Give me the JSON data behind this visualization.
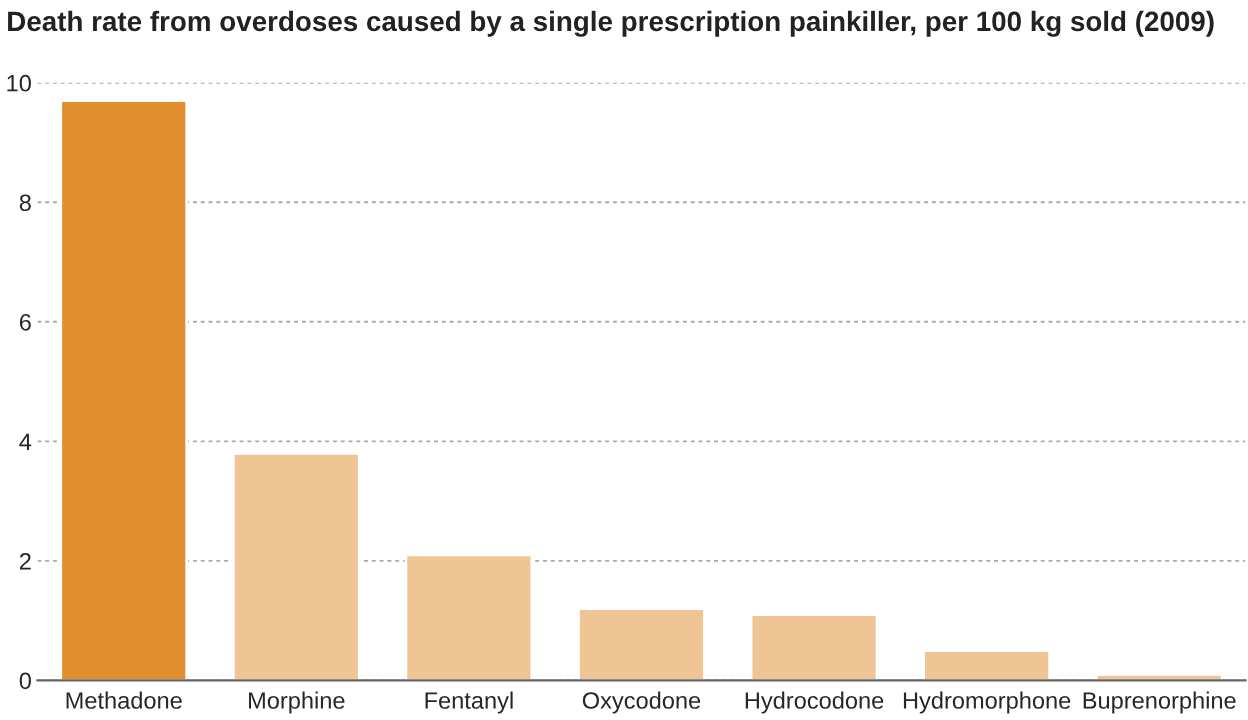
{
  "chart_data": {
    "type": "bar",
    "title": "Death rate from overdoses caused by a single prescription painkiller, per 100 kg sold (2009)",
    "categories": [
      "Methadone",
      "Morphine",
      "Fentanyl",
      "Oxycodone",
      "Hydrocodone",
      "Hydromorphone",
      "Buprenorphine"
    ],
    "values": [
      9.7,
      3.8,
      2.1,
      1.2,
      1.1,
      0.5,
      0.1
    ],
    "colors": [
      "#e08e2e",
      "#efc596",
      "#efc596",
      "#efc596",
      "#efc596",
      "#efc596",
      "#efc596"
    ],
    "ylim": [
      0,
      10
    ],
    "yticks": [
      0,
      2,
      4,
      6,
      8,
      10
    ],
    "grid": "y"
  }
}
